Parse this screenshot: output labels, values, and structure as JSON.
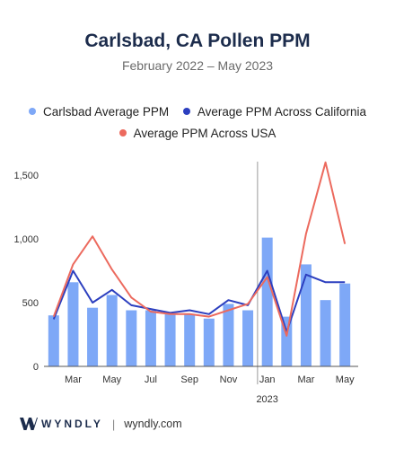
{
  "header": {
    "title": "Carlsbad, CA Pollen PPM",
    "subtitle": "February 2022 – May 2023"
  },
  "colors": {
    "bar": "#7ea8f7",
    "california_line": "#2c3fbf",
    "usa_line": "#ec6a5e",
    "axis": "#555555",
    "divider": "#9a9a9a"
  },
  "footer": {
    "logo": "WYNDLY",
    "separator": "|",
    "site": "wyndly.com"
  },
  "chart_data": {
    "type": "bar",
    "x": [
      "2022-02",
      "2022-03",
      "2022-04",
      "2022-05",
      "2022-06",
      "2022-07",
      "2022-08",
      "2022-09",
      "2022-10",
      "2022-11",
      "2022-12",
      "2023-01",
      "2023-02",
      "2023-03",
      "2023-04",
      "2023-05"
    ],
    "tick_labels": [
      "",
      "Mar",
      "",
      "May",
      "",
      "Jul",
      "",
      "Sep",
      "",
      "Nov",
      "",
      "Jan",
      "",
      "Mar",
      "",
      "May"
    ],
    "year_label": "2023",
    "year_divider_before": "2023-01",
    "series": [
      {
        "name": "Carlsbad Average PPM",
        "kind": "bar",
        "values": [
          400,
          660,
          460,
          560,
          440,
          440,
          410,
          410,
          375,
          490,
          440,
          1010,
          390,
          800,
          520,
          650
        ]
      },
      {
        "name": "Average PPM Across California",
        "kind": "line",
        "values": [
          370,
          750,
          500,
          600,
          480,
          450,
          420,
          440,
          410,
          520,
          480,
          750,
          270,
          720,
          660,
          660
        ]
      },
      {
        "name": "Average PPM Across USA",
        "kind": "line",
        "values": [
          390,
          800,
          1020,
          760,
          540,
          430,
          410,
          410,
          390,
          440,
          490,
          700,
          240,
          1040,
          1600,
          960
        ]
      }
    ],
    "yticks": [
      0,
      500,
      1000,
      1500
    ],
    "ytick_labels": [
      "0",
      "500",
      "1,000",
      "1,500"
    ],
    "ylim": [
      0,
      1620
    ],
    "grid": false,
    "legend_placement": "top-center"
  }
}
